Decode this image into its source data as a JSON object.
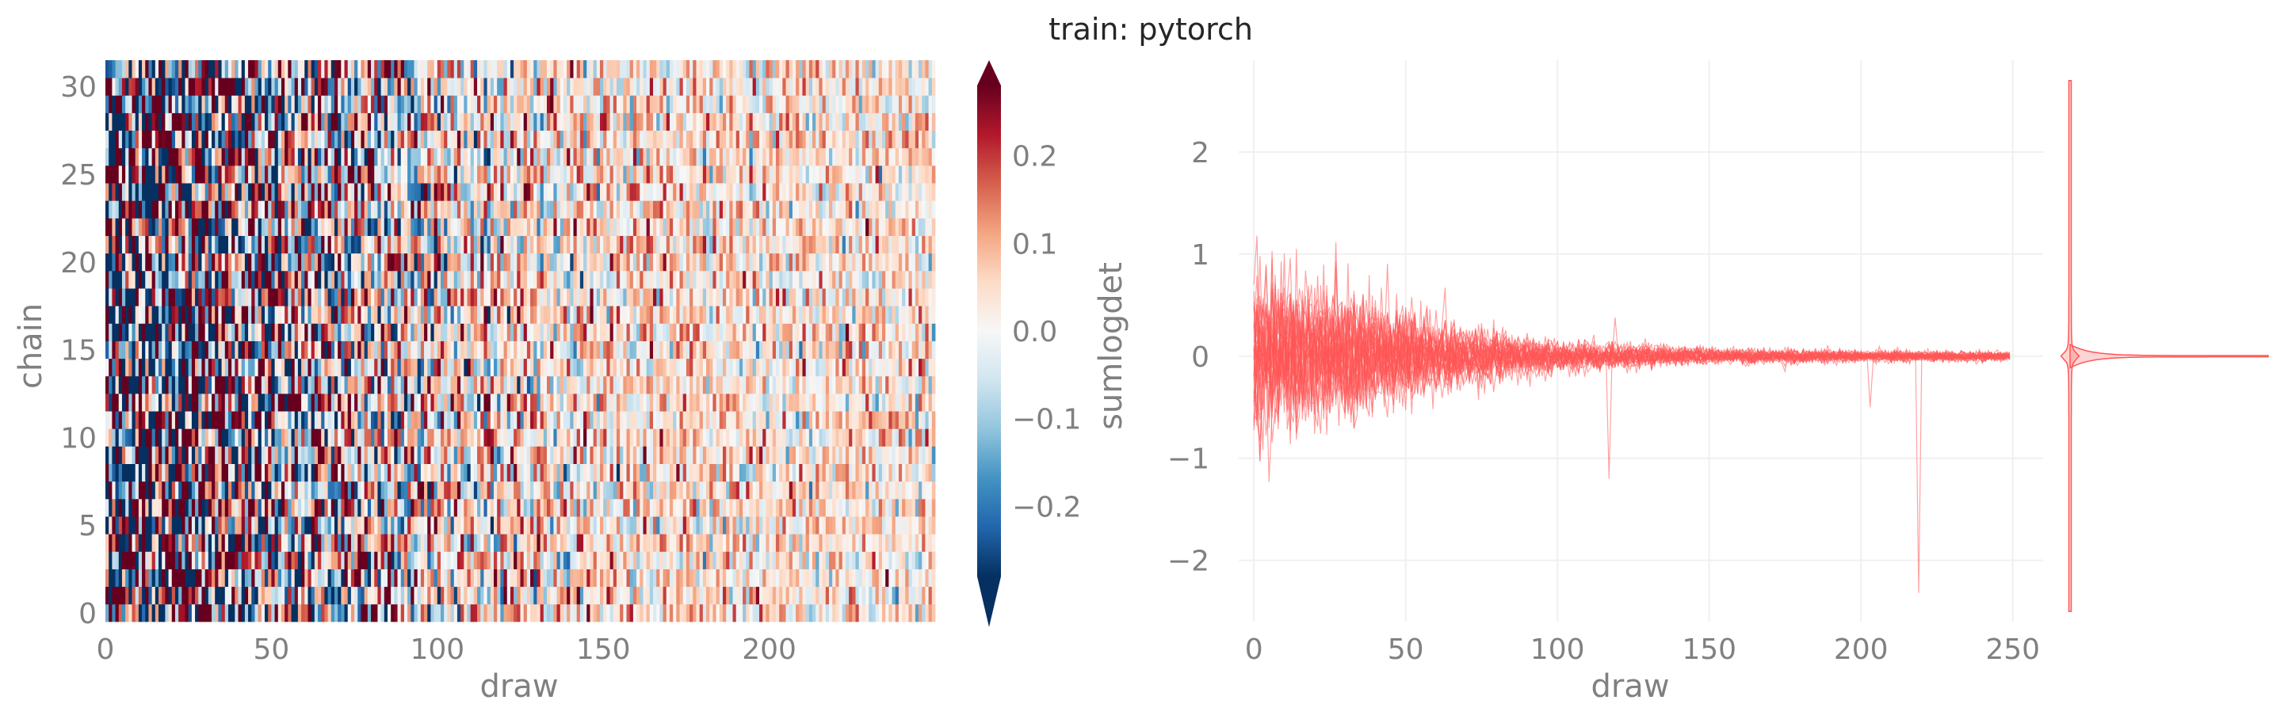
{
  "title": "train: pytorch",
  "colors": {
    "trace": "#ff5555",
    "text": "#808080",
    "title": "#262626",
    "grid": "#f0f0f0",
    "colormap": [
      "#053061",
      "#2166ac",
      "#4393c3",
      "#92c5de",
      "#d1e5f0",
      "#f7f7f7",
      "#fddbc7",
      "#f4a582",
      "#d6604d",
      "#b2182b",
      "#67001f"
    ]
  },
  "chart_data": [
    {
      "type": "heatmap",
      "xlabel": "draw",
      "ylabel": "chain",
      "x_ticks": [
        "0",
        "50",
        "100",
        "150",
        "200"
      ],
      "y_ticks": [
        "0",
        "5",
        "10",
        "15",
        "20",
        "25",
        "30"
      ],
      "xlim": [
        0,
        250
      ],
      "ylim": [
        0,
        32
      ],
      "n_draws": 250,
      "n_chains": 32,
      "colorbar": {
        "label": "sumlogdet",
        "range": [
          -0.28,
          0.28
        ],
        "extend": "both",
        "ticks": [
          "−0.2",
          "−0.1",
          "0.0",
          "0.1",
          "0.2"
        ]
      },
      "value_profile": {
        "description_free": true,
        "amplitude_by_draw": [
          [
            0,
            0.45
          ],
          [
            50,
            0.26
          ],
          [
            100,
            0.14
          ],
          [
            150,
            0.09
          ],
          [
            200,
            0.08
          ],
          [
            250,
            0.08
          ]
        ],
        "mean_by_draw": [
          [
            0,
            0.0
          ],
          [
            100,
            0.02
          ],
          [
            150,
            0.04
          ],
          [
            250,
            0.03
          ]
        ]
      }
    },
    {
      "type": "line",
      "xlabel": "draw",
      "ylabel": "",
      "x_ticks": [
        "0",
        "50",
        "100",
        "150",
        "200",
        "250"
      ],
      "y_ticks": [
        "−2",
        "−1",
        "0",
        "1",
        "2"
      ],
      "xlim": [
        -5,
        260
      ],
      "ylim": [
        -2.6,
        2.9
      ],
      "grid": true,
      "n_series": 32,
      "n_draws": 250,
      "envelope": [
        [
          0,
          0.7
        ],
        [
          10,
          0.65
        ],
        [
          20,
          0.6
        ],
        [
          40,
          0.5
        ],
        [
          60,
          0.3
        ],
        [
          80,
          0.2
        ],
        [
          100,
          0.13
        ],
        [
          150,
          0.07
        ],
        [
          200,
          0.05
        ],
        [
          250,
          0.04
        ]
      ],
      "spikes": [
        {
          "x": 1,
          "y": 1.18
        },
        {
          "x": 117,
          "y": -1.2
        },
        {
          "x": 119,
          "y": 0.38
        },
        {
          "x": 175,
          "y": -0.15
        },
        {
          "x": 203,
          "y": -0.5
        },
        {
          "x": 219,
          "y": -2.32
        }
      ],
      "marginal": {
        "type": "density",
        "y_range": [
          -2.5,
          2.7
        ],
        "peak_at": 0.0
      }
    }
  ]
}
